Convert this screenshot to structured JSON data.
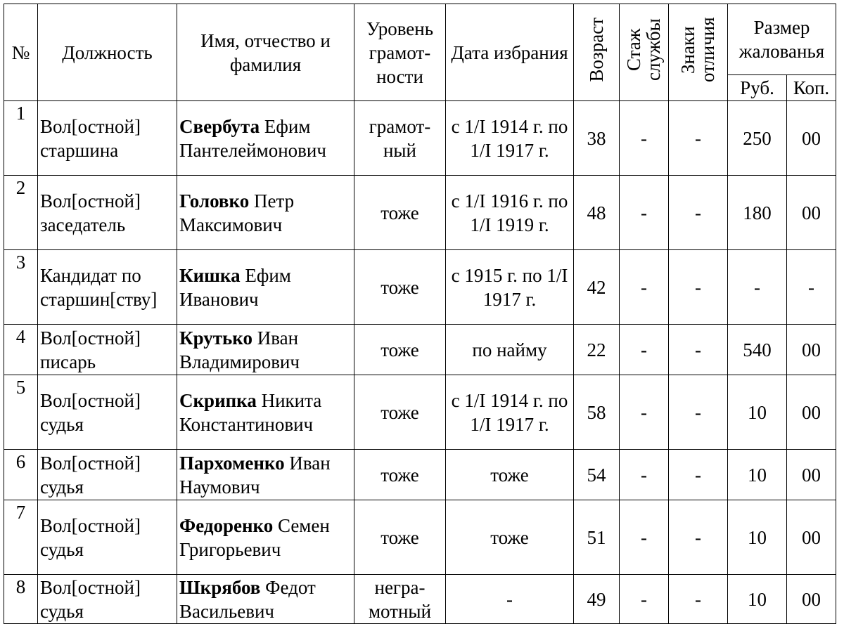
{
  "table": {
    "headers": {
      "num": "№",
      "position": "Должность",
      "name": "Имя, отчество и фамилия",
      "literacy": "Уровень грамот-ности",
      "election_date": "Дата избрания",
      "age": "Возраст",
      "service": "Стаж службы",
      "awards": "Знаки отличия",
      "salary": "Размер жалованья",
      "rub": "Руб.",
      "kop": "Коп."
    },
    "rows": [
      {
        "num": "1",
        "position": "Вол[остной] старшина",
        "surname": "Свербута",
        "given": "Ефим Пантелеймонович",
        "literacy": "грамот-ный",
        "date": "с 1/I 1914 г. по 1/I 1917 г.",
        "age": "38",
        "service": "-",
        "awards": "-",
        "rub": "250",
        "kop": "00"
      },
      {
        "num": "2",
        "position": "Вол[остной] заседатель",
        "surname": "Головко",
        "given": "Петр Максимович",
        "literacy": "тоже",
        "date": "с 1/I 1916 г. по 1/I 1919 г.",
        "age": "48",
        "service": "-",
        "awards": "-",
        "rub": "180",
        "kop": "00"
      },
      {
        "num": "3",
        "position": "Кандидат по старшин[ству]",
        "surname": "Кишка",
        "given": "Ефим Иванович",
        "literacy": "тоже",
        "date": "с 1915 г. по 1/I 1917 г.",
        "age": "42",
        "service": "-",
        "awards": "-",
        "rub": "-",
        "kop": "-"
      },
      {
        "num": "4",
        "position": "Вол[остной] писарь",
        "surname": "Крутько",
        "given": "Иван Владимирович",
        "literacy": "тоже",
        "date": "по найму",
        "age": "22",
        "service": "-",
        "awards": "-",
        "rub": "540",
        "kop": "00"
      },
      {
        "num": "5",
        "position": "Вол[остной] судья",
        "surname": "Скрипка",
        "given": "Никита Константинович",
        "literacy": "тоже",
        "date": "с 1/I 1914 г. по 1/I 1917 г.",
        "age": "58",
        "service": "-",
        "awards": "-",
        "rub": "10",
        "kop": "00"
      },
      {
        "num": "6",
        "position": "Вол[остной] судья",
        "surname": "Пархоменко",
        "given": "Иван Наумович",
        "literacy": "тоже",
        "date": "тоже",
        "age": "54",
        "service": "-",
        "awards": "-",
        "rub": "10",
        "kop": "00"
      },
      {
        "num": "7",
        "position": "Вол[остной] судья",
        "surname": "Федоренко",
        "given": "Семен Григорьевич",
        "literacy": "тоже",
        "date": "тоже",
        "age": "51",
        "service": "-",
        "awards": "-",
        "rub": "10",
        "kop": "00"
      },
      {
        "num": "8",
        "position": "Вол[остной] судья",
        "surname": "Шкрябов",
        "given": "Федот Васильевич",
        "literacy": "негра-мотный",
        "date": "-",
        "age": "49",
        "service": "-",
        "awards": "-",
        "rub": "10",
        "kop": "00"
      }
    ]
  }
}
